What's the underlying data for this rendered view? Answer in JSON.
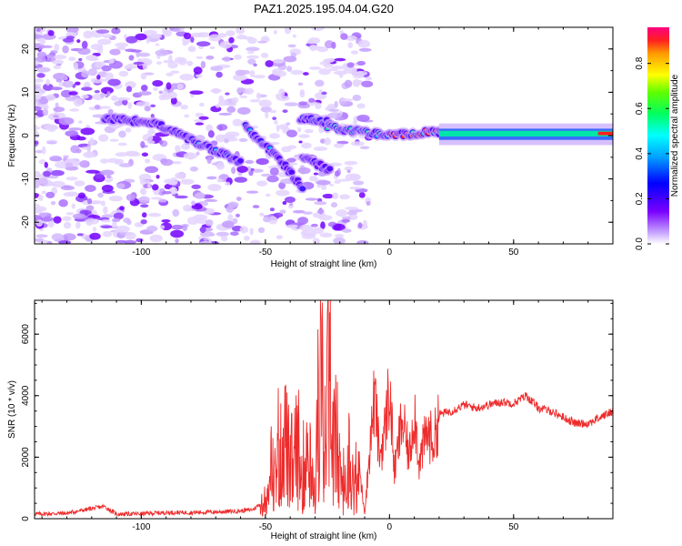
{
  "title": "PAZ1.2025.195.04.04.G20",
  "colors": {
    "snr_line": "#ee2b2b",
    "ridge_start": "#7a00ff",
    "ridge_end": "#ff2020"
  },
  "colorbar": {
    "label": "Normalized spectral amplitude",
    "ticks": [
      "0.0",
      "0.2",
      "0.4",
      "0.6",
      "0.8"
    ],
    "tick_values": [
      0.0,
      0.2,
      0.4,
      0.6,
      0.8
    ],
    "range": [
      0.0,
      0.96
    ]
  },
  "chart_data": [
    {
      "type": "heatmap",
      "title": "PAZ1.2025.195.04.04.G20",
      "xlabel": "Height of straight line (km)",
      "ylabel": "Frequency (Hz)",
      "xlim": [
        -143,
        90
      ],
      "ylim": [
        -25,
        25
      ],
      "xticks": [
        -100,
        -50,
        0,
        50
      ],
      "xtick_labels": [
        "-100",
        "-50",
        "0",
        "50"
      ],
      "yticks": [
        -20,
        -10,
        0,
        10,
        20
      ],
      "ytick_labels": [
        "-20",
        "-10",
        "0",
        "10",
        "20"
      ],
      "ridge_segments": [
        {
          "x": [
            -115,
            -95
          ],
          "y": [
            4,
            3
          ],
          "amp": 0.15
        },
        {
          "x": [
            -95,
            -80
          ],
          "y": [
            3,
            -1
          ],
          "amp": 0.2
        },
        {
          "x": [
            -80,
            -60
          ],
          "y": [
            -1,
            -6
          ],
          "amp": 0.3
        },
        {
          "x": [
            -58,
            -45
          ],
          "y": [
            2,
            -5
          ],
          "amp": 0.3
        },
        {
          "x": [
            -45,
            -35
          ],
          "y": [
            -5,
            -12
          ],
          "amp": 0.2
        },
        {
          "x": [
            -36,
            -24
          ],
          "y": [
            4,
            3
          ],
          "amp": 0.3
        },
        {
          "x": [
            -35,
            -24
          ],
          "y": [
            -5,
            -8
          ],
          "amp": 0.2
        },
        {
          "x": [
            -25,
            0
          ],
          "y": [
            2,
            0
          ],
          "amp": 0.5
        },
        {
          "x": [
            0,
            20
          ],
          "y": [
            0,
            1
          ],
          "amp": 0.7
        },
        {
          "x": [
            20,
            90
          ],
          "y": [
            0.5,
            0.5
          ],
          "amp": 0.55
        }
      ]
    },
    {
      "type": "line",
      "xlabel": "Height of straight line (km)",
      "ylabel": "SNR (10 * v/v)",
      "xlim": [
        -143,
        90
      ],
      "ylim": [
        0,
        7100
      ],
      "xticks": [
        -100,
        -50,
        0,
        50
      ],
      "xtick_labels": [
        "-100",
        "-50",
        "0",
        "50"
      ],
      "yticks": [
        0,
        2000,
        4000,
        6000
      ],
      "ytick_labels": [
        "0",
        "2000",
        "4000",
        "6000"
      ],
      "series": [
        {
          "x": [
            -143,
            -130,
            -115,
            -110,
            -100,
            -90,
            -80,
            -70,
            -60,
            -55,
            -50,
            -47,
            -45,
            -42,
            -40,
            -38,
            -35,
            -33,
            -30,
            -28,
            -26,
            -25,
            -24,
            -23,
            -22,
            -21,
            -20,
            -18,
            -16,
            -14,
            -12,
            -10,
            -8,
            -6,
            -4,
            -2,
            0,
            2,
            5,
            8,
            10,
            12,
            15,
            18,
            20,
            25,
            30,
            35,
            40,
            45,
            50,
            55,
            60,
            65,
            70,
            75,
            80,
            85,
            90
          ],
          "y": [
            150,
            180,
            400,
            150,
            160,
            200,
            200,
            220,
            250,
            300,
            600,
            1500,
            1800,
            2800,
            1200,
            1900,
            1500,
            2600,
            900,
            4000,
            2000,
            5000,
            7100,
            3500,
            2000,
            2000,
            1500,
            800,
            2000,
            1000,
            1500,
            200,
            2200,
            4000,
            2000,
            2800,
            4300,
            1500,
            3200,
            2000,
            3600,
            1800,
            2800,
            2500,
            3400,
            3500,
            3700,
            3600,
            3700,
            3800,
            3750,
            4000,
            3600,
            3500,
            3300,
            3100,
            3100,
            3300,
            3500
          ]
        }
      ]
    }
  ]
}
